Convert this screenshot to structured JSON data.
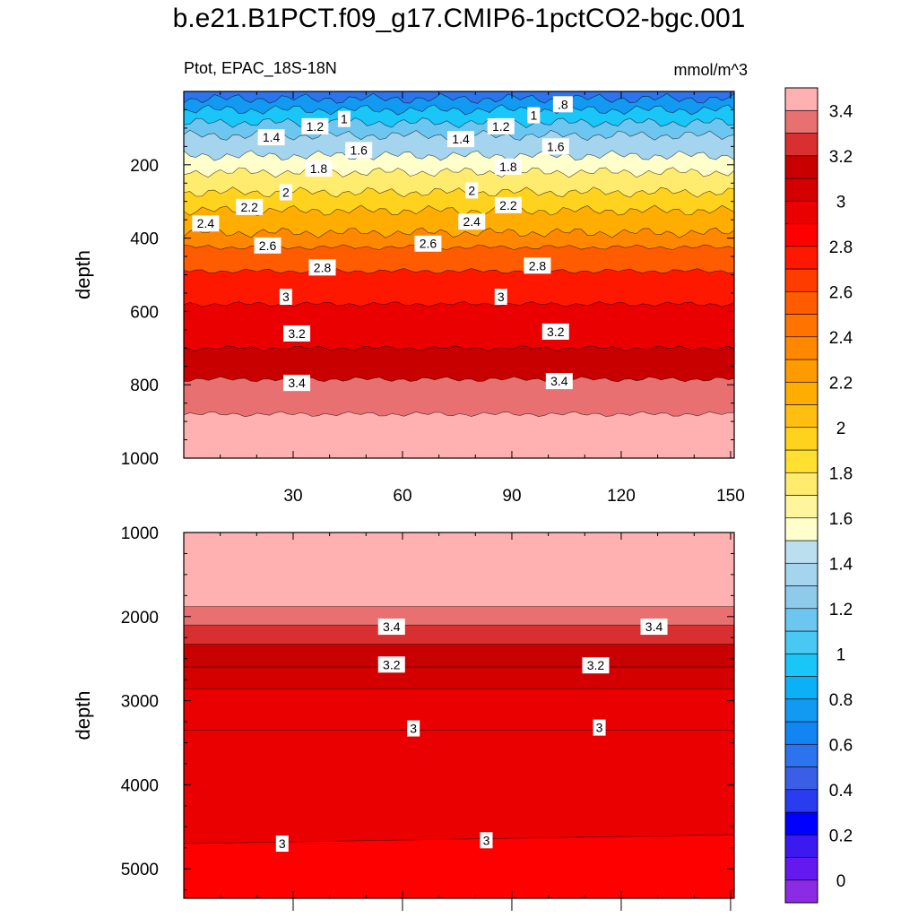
{
  "chart_data": {
    "type": "contour",
    "title": "b.e21.B1PCT.f09_g17.CMIP6-1pctCO2-bgc.001",
    "subtitle_left": "Ptot, EPAC_18S-18N",
    "subtitle_right": "mmol/m^3",
    "colorbar": {
      "colors": [
        "#8b2be3",
        "#6419ee",
        "#3c19ee",
        "#0000ff",
        "#2a3cf0",
        "#3b5ee6",
        "#2c73ee",
        "#1185f2",
        "#1299f2",
        "#0cb0f7",
        "#1ac5f7",
        "#48c8f2",
        "#6dc6f0",
        "#8ecbea",
        "#a5d5ee",
        "#bcdff0",
        "#ffffcc",
        "#fff59c",
        "#ffec6e",
        "#ffe030",
        "#ffd21e",
        "#ffbf10",
        "#ffad00",
        "#ff9a00",
        "#ff8800",
        "#ff7400",
        "#ff5c00",
        "#ff3c00",
        "#ff1800",
        "#ff0000",
        "#ea0000",
        "#d40000",
        "#c80000",
        "#d83030",
        "#e87070",
        "#ffb0b0"
      ],
      "labels": [
        "0",
        "0.2",
        "0.4",
        "0.6",
        "0.8",
        "1",
        "1.2",
        "1.4",
        "1.6",
        "1.8",
        "2",
        "2.2",
        "2.4",
        "2.6",
        "2.8",
        "3",
        "3.2",
        "3.4"
      ]
    },
    "panels": [
      {
        "name": "upper",
        "ylabel": "depth",
        "ylim": [
          0,
          1000
        ],
        "yticks": [
          "200",
          "400",
          "600",
          "800",
          "1000"
        ],
        "xlim": [
          0,
          151
        ],
        "xticks": [
          "30",
          "60",
          "90",
          "120",
          "150"
        ],
        "levels": [
          {
            "value": 0.6,
            "depth": 5
          },
          {
            "value": 0.8,
            "depth": 20
          },
          {
            "value": 1.0,
            "depth": 50
          },
          {
            "value": 1.2,
            "depth": 85
          },
          {
            "value": 1.4,
            "depth": 120
          },
          {
            "value": 1.6,
            "depth": 175
          },
          {
            "value": 1.8,
            "depth": 220
          },
          {
            "value": 2.0,
            "depth": 275
          },
          {
            "value": 2.2,
            "depth": 325
          },
          {
            "value": 2.4,
            "depth": 385
          },
          {
            "value": 2.6,
            "depth": 425
          },
          {
            "value": 2.8,
            "depth": 490
          },
          {
            "value": 3.0,
            "depth": 580
          },
          {
            "value": 3.2,
            "depth": 700
          },
          {
            "value": 3.4,
            "depth": 785
          },
          {
            "value": 3.6,
            "depth": 880
          }
        ],
        "contour_labels": [
          {
            "text": ".8",
            "x": 104,
            "d": 35
          },
          {
            "text": "1",
            "x": 44,
            "d": 75
          },
          {
            "text": "1",
            "x": 96,
            "d": 65
          },
          {
            "text": "1.2",
            "x": 36,
            "d": 95
          },
          {
            "text": "1.2",
            "x": 87,
            "d": 95
          },
          {
            "text": "1.4",
            "x": 24,
            "d": 125
          },
          {
            "text": "1.4",
            "x": 76,
            "d": 130
          },
          {
            "text": "1.6",
            "x": 48,
            "d": 160
          },
          {
            "text": "1.6",
            "x": 102,
            "d": 150
          },
          {
            "text": "1.8",
            "x": 37,
            "d": 210
          },
          {
            "text": "1.8",
            "x": 89,
            "d": 205
          },
          {
            "text": "2",
            "x": 28,
            "d": 275
          },
          {
            "text": "2",
            "x": 79,
            "d": 270
          },
          {
            "text": "2.2",
            "x": 18,
            "d": 315
          },
          {
            "text": "2.2",
            "x": 89,
            "d": 310
          },
          {
            "text": "2.4",
            "x": 6,
            "d": 360
          },
          {
            "text": "2.4",
            "x": 79,
            "d": 355
          },
          {
            "text": "2.6",
            "x": 23,
            "d": 420
          },
          {
            "text": "2.6",
            "x": 67,
            "d": 415
          },
          {
            "text": "2.8",
            "x": 38,
            "d": 480
          },
          {
            "text": "2.8",
            "x": 97,
            "d": 475
          },
          {
            "text": "3",
            "x": 28,
            "d": 560
          },
          {
            "text": "3",
            "x": 87,
            "d": 560
          },
          {
            "text": "3.2",
            "x": 31,
            "d": 660
          },
          {
            "text": "3.2",
            "x": 102,
            "d": 655
          },
          {
            "text": "3.4",
            "x": 31,
            "d": 795
          },
          {
            "text": "3.4",
            "x": 103,
            "d": 790
          }
        ]
      },
      {
        "name": "lower",
        "ylabel": "depth",
        "ylim": [
          1000,
          5350
        ],
        "yticks": [
          "1000",
          "2000",
          "3000",
          "4000",
          "5000"
        ],
        "xlim": [
          0,
          151
        ],
        "levels": [
          {
            "value": 3.6,
            "depth": 1000
          },
          {
            "value": 3.4,
            "depth": 1880
          },
          {
            "value": 3.3,
            "depth": 2100
          },
          {
            "value": 3.2,
            "depth": 2330
          },
          {
            "value": 3.1,
            "depth": 2600
          },
          {
            "value": 3.05,
            "depth": 2860
          },
          {
            "value": 3.0,
            "depth": 3350
          },
          {
            "value": 2.98,
            "depth": 4700
          }
        ],
        "contour_labels": [
          {
            "text": "3.4",
            "x": 57,
            "d": 2120
          },
          {
            "text": "3.4",
            "x": 129,
            "d": 2120
          },
          {
            "text": "3.2",
            "x": 57,
            "d": 2570
          },
          {
            "text": "3.2",
            "x": 113,
            "d": 2580
          },
          {
            "text": "3",
            "x": 63,
            "d": 3330
          },
          {
            "text": "3",
            "x": 114,
            "d": 3320
          },
          {
            "text": "3",
            "x": 27,
            "d": 4700
          },
          {
            "text": "3",
            "x": 83,
            "d": 4660
          }
        ]
      }
    ]
  }
}
